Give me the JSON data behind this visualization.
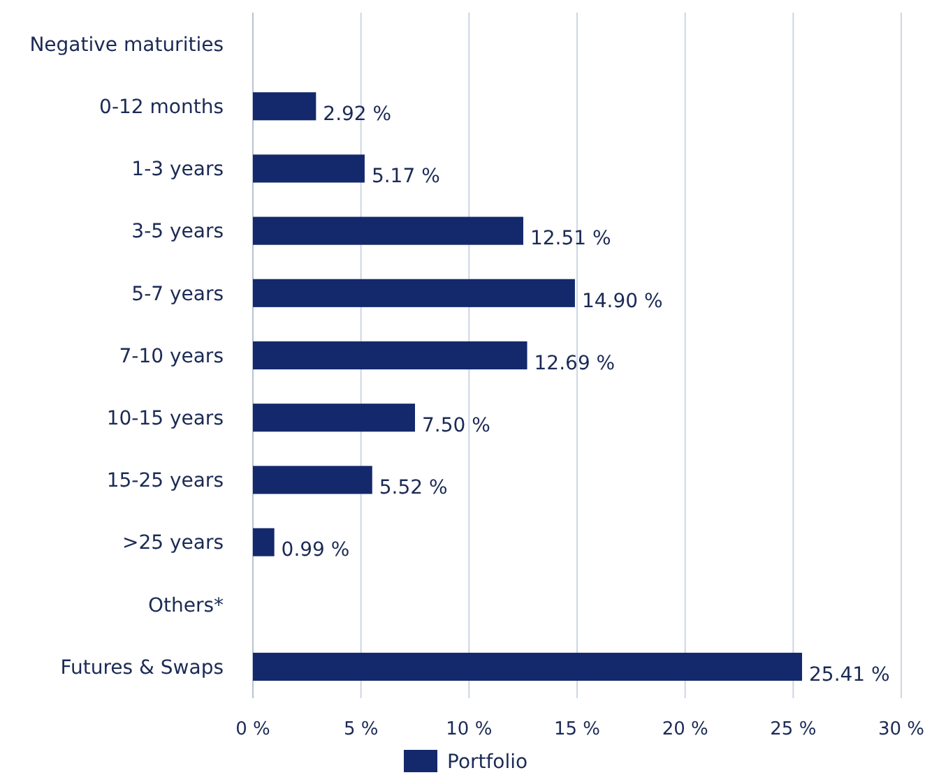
{
  "chart_data": {
    "type": "bar",
    "orientation": "horizontal",
    "categories": [
      "Negative maturities",
      "0-12 months",
      "1-3 years",
      "3-5 years",
      "5-7 years",
      "7-10 years",
      "10-15 years",
      "15-25 years",
      ">25 years",
      "Others*",
      "Futures & Swaps"
    ],
    "series": [
      {
        "name": "Portfolio",
        "color": "#13296b",
        "values": [
          null,
          2.92,
          5.17,
          12.51,
          14.9,
          12.69,
          7.5,
          5.52,
          0.99,
          null,
          25.41
        ]
      }
    ],
    "value_labels": [
      null,
      "2.92 %",
      "5.17 %",
      "12.51 %",
      "14.90 %",
      "12.69 %",
      "7.50 %",
      "5.52 %",
      "0.99 %",
      null,
      "25.41 %"
    ],
    "xlim": [
      0,
      30
    ],
    "xticks": [
      {
        "value": 0,
        "label": "0 %"
      },
      {
        "value": 5,
        "label": "5 %"
      },
      {
        "value": 10,
        "label": "10 %"
      },
      {
        "value": 15,
        "label": "15 %"
      },
      {
        "value": 20,
        "label": "20 %"
      },
      {
        "value": 25,
        "label": "25 %"
      },
      {
        "value": 30,
        "label": "30 %"
      }
    ],
    "grid": "x",
    "legend": "bottom"
  }
}
